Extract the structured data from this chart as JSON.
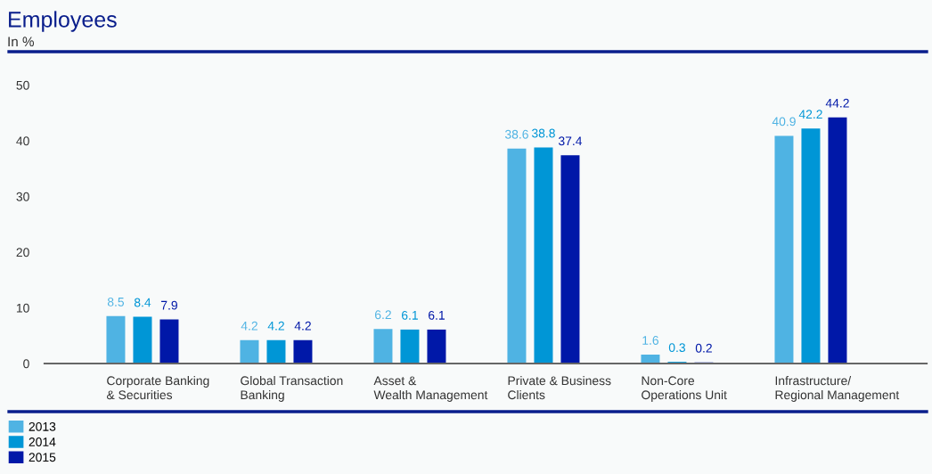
{
  "chart_data": {
    "type": "bar",
    "title": "Employees",
    "subtitle": "In %",
    "categories": [
      "Corporate Banking\n& Securities",
      "Global Transaction\nBanking",
      "Asset &\nWealth Management",
      "Private & Business\nClients",
      "Non-Core\nOperations Unit",
      "Infrastructure/\nRegional Management"
    ],
    "series": [
      {
        "name": "2013",
        "color": "#4fb3e3",
        "values": [
          8.5,
          4.2,
          6.2,
          38.6,
          1.6,
          40.9
        ]
      },
      {
        "name": "2014",
        "color": "#0096d6",
        "values": [
          8.4,
          4.2,
          6.1,
          38.8,
          0.3,
          42.2
        ]
      },
      {
        "name": "2015",
        "color": "#0018a8",
        "values": [
          7.9,
          4.2,
          6.1,
          37.4,
          0.2,
          44.2
        ]
      }
    ],
    "ylim": [
      0,
      56
    ],
    "yticks": [
      0,
      10,
      20,
      30,
      40,
      50
    ],
    "data_labels": true,
    "grid": false,
    "legend": "bottom left"
  }
}
